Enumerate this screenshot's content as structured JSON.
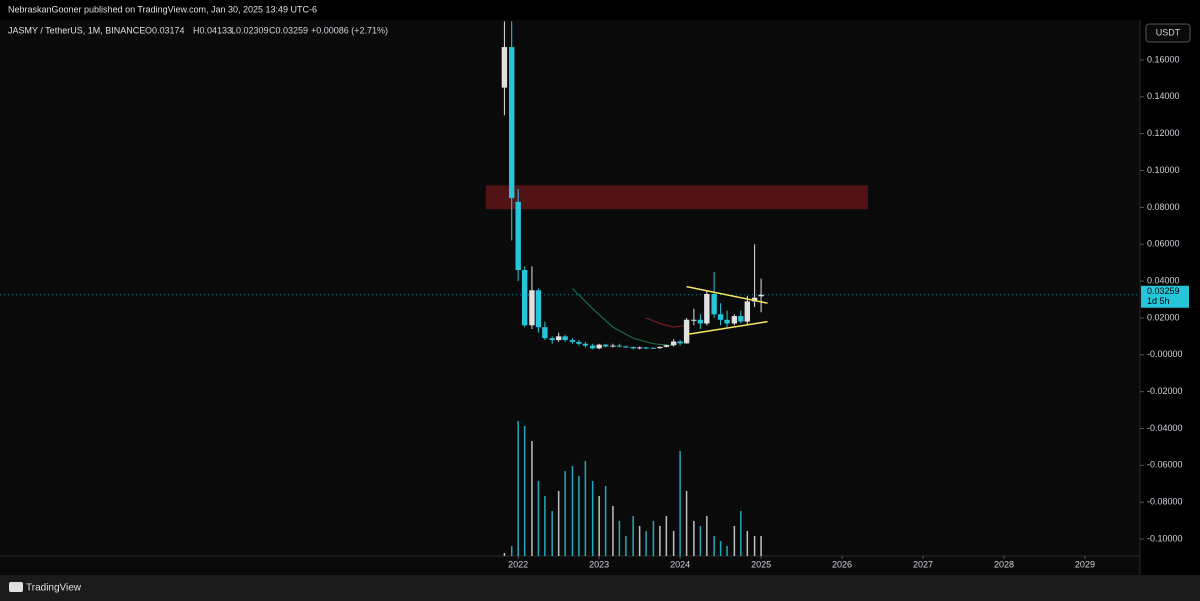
{
  "header": {
    "publisher": "NebraskanGooner published on TradingView.com, Jan 30, 2025 13:49 UTC-6",
    "symbol": "JASMY / TetherUS, 1M, BINANCE",
    "ohlc": [
      "O0.03174",
      "H0.04133",
      "L0.02309",
      "C0.03259",
      "+0.00086 (+2.71%)"
    ],
    "currency": "USDT",
    "countdown": "1d 5h",
    "brand": "TradingView"
  },
  "chart_data": {
    "type": "candlestick",
    "x": [
      2021.83,
      2021.92,
      2022.0,
      2022.08,
      2022.17,
      2022.25,
      2022.33,
      2022.42,
      2022.5,
      2022.58,
      2022.67,
      2022.75,
      2022.83,
      2022.92,
      2023.0,
      2023.08,
      2023.17,
      2023.25,
      2023.33,
      2023.42,
      2023.5,
      2023.58,
      2023.67,
      2023.75,
      2023.83,
      2023.92,
      2024.0,
      2024.08,
      2024.17,
      2024.25,
      2024.33,
      2024.42,
      2024.5,
      2024.58,
      2024.67,
      2024.75,
      2024.83,
      2024.92,
      2025.0
    ],
    "open": [
      0.145,
      0.167,
      0.083,
      0.046,
      0.016,
      0.035,
      0.015,
      0.009,
      0.008,
      0.01,
      0.008,
      0.007,
      0.006,
      0.005,
      0.0035,
      0.0055,
      0.0045,
      0.005,
      0.0045,
      0.0042,
      0.0035,
      0.004,
      0.0038,
      0.0036,
      0.0043,
      0.0052,
      0.0072,
      0.0062,
      0.019,
      0.019,
      0.017,
      0.033,
      0.022,
      0.019,
      0.017,
      0.021,
      0.018,
      0.029,
      0.03174
    ],
    "high": [
      0.181,
      0.181,
      0.09,
      0.048,
      0.048,
      0.036,
      0.018,
      0.01,
      0.012,
      0.011,
      0.009,
      0.008,
      0.007,
      0.006,
      0.006,
      0.006,
      0.006,
      0.006,
      0.005,
      0.0045,
      0.0045,
      0.0042,
      0.004,
      0.0045,
      0.0055,
      0.0085,
      0.008,
      0.02,
      0.025,
      0.022,
      0.035,
      0.045,
      0.028,
      0.024,
      0.022,
      0.024,
      0.032,
      0.06,
      0.04133
    ],
    "low": [
      0.13,
      0.062,
      0.04,
      0.015,
      0.014,
      0.012,
      0.008,
      0.006,
      0.007,
      0.007,
      0.006,
      0.005,
      0.004,
      0.003,
      0.003,
      0.004,
      0.004,
      0.004,
      0.0038,
      0.003,
      0.003,
      0.003,
      0.0034,
      0.0033,
      0.004,
      0.0045,
      0.005,
      0.006,
      0.016,
      0.014,
      0.016,
      0.02,
      0.016,
      0.015,
      0.016,
      0.017,
      0.016,
      0.026,
      0.02309
    ],
    "close": [
      0.167,
      0.085,
      0.046,
      0.016,
      0.035,
      0.015,
      0.009,
      0.008,
      0.01,
      0.008,
      0.007,
      0.006,
      0.005,
      0.0035,
      0.0055,
      0.0045,
      0.005,
      0.0045,
      0.0042,
      0.0035,
      0.004,
      0.0038,
      0.0036,
      0.0043,
      0.0052,
      0.0072,
      0.0062,
      0.019,
      0.019,
      0.017,
      0.033,
      0.022,
      0.019,
      0.017,
      0.021,
      0.018,
      0.029,
      0.031,
      0.03259
    ],
    "volume": [
      3,
      10,
      135,
      130,
      115,
      75,
      60,
      45,
      65,
      85,
      90,
      80,
      95,
      75,
      60,
      70,
      50,
      35,
      20,
      40,
      30,
      25,
      35,
      30,
      40,
      25,
      105,
      65,
      35,
      30,
      40,
      20,
      15,
      10,
      30,
      45,
      25,
      20,
      20
    ],
    "vlim": [
      0,
      150
    ],
    "up_color": "#e0e0e0",
    "down_color": "#26c6da",
    "last_price": {
      "value": 0.03259,
      "label": "0.03259"
    },
    "xlim": [
      2015.6,
      2029.68
    ],
    "xticks": [
      2022,
      2023,
      2024,
      2025,
      2026,
      2027,
      2028,
      2029
    ],
    "ylim": [
      -0.1092,
      0.1817
    ],
    "yticks": [
      {
        "value": 0.16,
        "label": "0.16000"
      },
      {
        "value": 0.14,
        "label": "0.14000"
      },
      {
        "value": 0.12,
        "label": "0.12000"
      },
      {
        "value": 0.1,
        "label": "0.10000"
      },
      {
        "value": 0.08,
        "label": "0.08000"
      },
      {
        "value": 0.06,
        "label": "0.06000"
      },
      {
        "value": 0.04,
        "label": "0.04000"
      },
      {
        "value": 0.02,
        "label": "0.02000"
      },
      {
        "value": 0,
        "label": "-0.00000"
      },
      {
        "value": -0.02,
        "label": "-0.02000"
      },
      {
        "value": -0.04,
        "label": "-0.04000"
      },
      {
        "value": -0.06,
        "label": "-0.06000"
      },
      {
        "value": -0.08,
        "label": "-0.08000"
      },
      {
        "value": -0.1,
        "label": "-0.10000"
      }
    ],
    "zone": {
      "color": "#5a1418",
      "xlim": [
        2021.6,
        2026.32
      ],
      "ylim": [
        0.079,
        0.092
      ]
    },
    "trendlines": [
      {
        "color": "#f5e663",
        "x": [
          2024.08,
          2025.08
        ],
        "y": [
          0.037,
          0.028
        ]
      },
      {
        "color": "#f5e663",
        "x": [
          2024.08,
          2025.08
        ],
        "y": [
          0.011,
          0.018
        ]
      }
    ],
    "ma": [
      {
        "color": "#1e7a4a",
        "x": [
          2022.67,
          2022.92,
          2023.17,
          2023.42,
          2023.67,
          2023.92
        ],
        "y": [
          0.036,
          0.025,
          0.015,
          0.009,
          0.006,
          0.005
        ]
      },
      {
        "color": "#8b1e24",
        "x": [
          2023.58,
          2023.75,
          2023.92,
          2024.08
        ],
        "y": [
          0.02,
          0.017,
          0.015,
          0.016
        ]
      }
    ]
  }
}
